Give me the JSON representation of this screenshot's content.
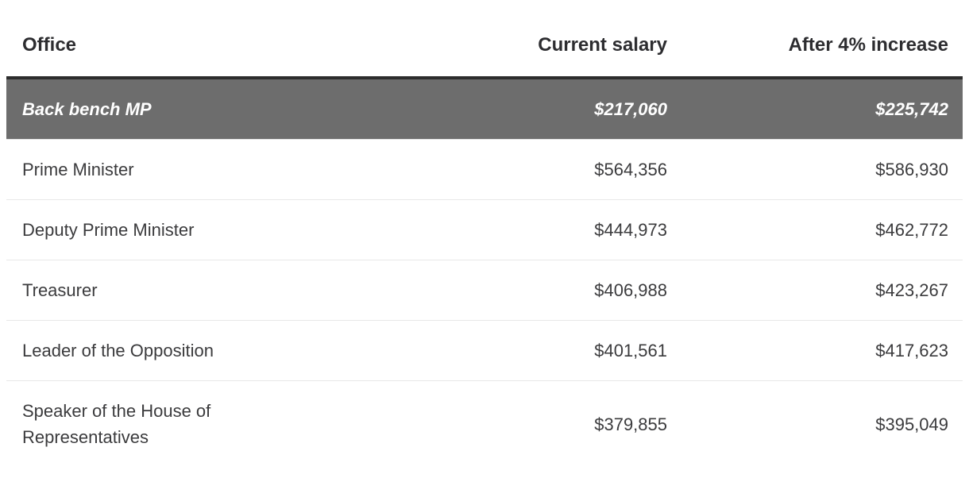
{
  "table": {
    "headers": [
      {
        "label": "Office"
      },
      {
        "label": "Current salary"
      },
      {
        "label": "After 4% increase"
      }
    ],
    "rows": [
      {
        "office": "Back bench MP",
        "current": "$217,060",
        "increased": "$225,742",
        "highlight": true
      },
      {
        "office": "Prime Minister",
        "current": "$564,356",
        "increased": "$586,930",
        "highlight": false
      },
      {
        "office": "Deputy Prime Minister",
        "current": "$444,973",
        "increased": "$462,772",
        "highlight": false
      },
      {
        "office": "Treasurer",
        "current": "$406,988",
        "increased": "$423,267",
        "highlight": false
      },
      {
        "office": "Leader of the Opposition",
        "current": "$401,561",
        "increased": "$417,623",
        "highlight": false
      },
      {
        "office": "Speaker of the House of Representatives",
        "current": "$379,855",
        "increased": "$395,049",
        "highlight": false
      }
    ]
  },
  "colors": {
    "highlight_row_background": "#6d6d6d",
    "highlight_row_text": "#ffffff",
    "highlight_top_border": "#2d2d2d",
    "header_text": "#2d2d30",
    "body_text": "#3b3b3d",
    "row_divider": "#e8e8e8",
    "page_background": "#ffffff"
  },
  "chart_data": {
    "type": "table",
    "title": "",
    "columns": [
      "Office",
      "Current salary",
      "After 4% increase"
    ],
    "rows": [
      [
        "Back bench MP",
        217060,
        225742
      ],
      [
        "Prime Minister",
        564356,
        586930
      ],
      [
        "Deputy Prime Minister",
        444973,
        462772
      ],
      [
        "Treasurer",
        406988,
        423267
      ],
      [
        "Leader of the Opposition",
        401561,
        417623
      ],
      [
        "Speaker of the House of Representatives",
        379855,
        395049
      ]
    ],
    "notes": "First data row (Back bench MP) is visually highlighted with a gray background and bold italic text; salary columns are right-aligned; increase rate shown in header is 4%"
  }
}
